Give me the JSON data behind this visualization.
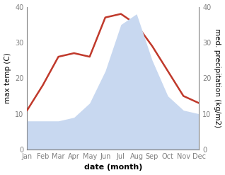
{
  "months": [
    "Jan",
    "Feb",
    "Mar",
    "Apr",
    "May",
    "Jun",
    "Jul",
    "Aug",
    "Sep",
    "Oct",
    "Nov",
    "Dec"
  ],
  "max_temp": [
    11,
    18,
    26,
    27,
    26,
    37,
    38,
    35,
    29,
    22,
    15,
    13
  ],
  "precipitation": [
    8,
    8,
    8,
    9,
    13,
    22,
    35,
    38,
    25,
    15,
    11,
    10
  ],
  "temp_color": "#c0392b",
  "precip_fill_color": "#c8d8f0",
  "temp_ylim": [
    0,
    40
  ],
  "precip_ylim": [
    0,
    40
  ],
  "xlabel": "date (month)",
  "ylabel_left": "max temp (C)",
  "ylabel_right": "med. precipitation (kg/m2)",
  "yticks": [
    0,
    10,
    20,
    30,
    40
  ],
  "line_width": 1.8,
  "font_size_tick": 7,
  "font_size_label": 7.5,
  "font_size_xlabel": 8
}
